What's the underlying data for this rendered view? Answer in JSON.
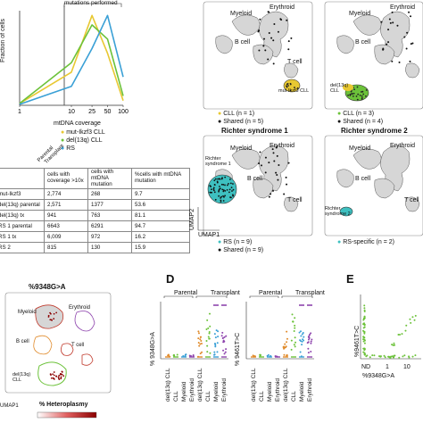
{
  "colors": {
    "cll_yellow": "#e8c832",
    "del13q_green": "#6cc23a",
    "rs_blue": "#3aa0d6",
    "rs_teal": "#3ec0c0",
    "shared_black": "#111111",
    "cell_gray": "#d6d6d6",
    "parental_orange": "#e08a2a",
    "myeloid_red": "#c0392b",
    "erythroid_purple": "#8e44ad"
  },
  "panel_a": {
    "annotation": "mutations performed",
    "ylabel": "Fraction of cells",
    "xlabel": "mtDNA coverage",
    "xticks": [
      "1",
      "10",
      "25",
      "50",
      "100"
    ],
    "legend": [
      "mut-Ikzf3 CLL",
      "del(13q) CLL",
      "RS"
    ],
    "side_label_1": "Parental",
    "side_label_2": "Transplant"
  },
  "table": {
    "headers": [
      "",
      "cells with coverage >10x",
      "cells with mtDNA mutation",
      "%cells with mtDNA mutation"
    ],
    "rows": [
      [
        "mut-Ikzf3",
        "2,774",
        "268",
        "9.7"
      ],
      [
        "del(13q) parental",
        "2,571",
        "1377",
        "53.6"
      ],
      [
        "del(13q) tx",
        "941",
        "763",
        "81.1"
      ],
      [
        "RS 1 parental",
        "6643",
        "6291",
        "94.7"
      ],
      [
        "RS 1 tx",
        "6,009",
        "972",
        "16.2"
      ],
      [
        "RS 2",
        "815",
        "130",
        "15.9"
      ]
    ]
  },
  "umaps": {
    "myeloid": "Myeloid",
    "erythroid": "Erythroid",
    "bcell": "B cell",
    "tcell": "T cell",
    "umap1": "UMAP1",
    "umap2": "UMAP2",
    "p1": {
      "label": "mut-Ikzf3 CLL",
      "leg1": "CLL (n = 1)",
      "leg2": "Shared (n = 5)"
    },
    "p2": {
      "label": "del(13q) CLL",
      "leg1": "CLL (n = 3)",
      "leg2": "Shared (n = 4)"
    },
    "p3": {
      "title": "Richter syndrome 1",
      "label": "Richter syndrome 1",
      "leg1": "RS (n = 9)",
      "leg2": "Shared (n = 9)"
    },
    "p4": {
      "title": "Richter syndrome 2",
      "label": "Richter syndrome 2",
      "leg1": "RS-specific (n = 2)"
    }
  },
  "panel_c": {
    "title": "%9348G>A",
    "myeloid": "Myeloid",
    "erythroid": "Erythroid",
    "bcell": "B cell",
    "tcell": "T cell",
    "cll": "del(13q) CLL",
    "umap1": "UMAP1",
    "colorbar_label": "% Heteroplasmy"
  },
  "panel_d": {
    "letter": "D",
    "parental": "Parental",
    "transplant": "Transplant",
    "ylabel1": "% 9348G>A",
    "ylabel2": "% 9461T>C",
    "categories": [
      "del(13q) CLL",
      "CLL",
      "Myeloid",
      "Erythroid"
    ]
  },
  "panel_e": {
    "letter": "E",
    "ylabel": "%9461T>C",
    "xlabel": "%9348G>A",
    "xticks": [
      "ND",
      "1",
      "10"
    ]
  },
  "chart_data": [
    {
      "type": "line",
      "xlabel": "mtDNA coverage",
      "ylabel": "Fraction of cells",
      "x": [
        1,
        10,
        25,
        50,
        100
      ],
      "series": [
        {
          "name": "mut-Ikzf3 CLL",
          "values": [
            0.02,
            0.35,
            0.95,
            0.55,
            0.05
          ]
        },
        {
          "name": "del(13q) CLL",
          "values": [
            0.02,
            0.45,
            0.85,
            0.7,
            0.1
          ]
        },
        {
          "name": "RS",
          "values": [
            0.01,
            0.2,
            0.6,
            0.95,
            0.3
          ]
        }
      ]
    },
    {
      "type": "scatter",
      "ylabel": "% 9348G>A",
      "categories": [
        "del(13q) CLL",
        "CLL",
        "Myeloid",
        "Erythroid"
      ],
      "series": [
        {
          "name": "Parental"
        },
        {
          "name": "Transplant"
        }
      ]
    },
    {
      "type": "scatter",
      "ylabel": "% 9461T>C",
      "categories": [
        "del(13q) CLL",
        "CLL",
        "Myeloid",
        "Erythroid"
      ],
      "series": [
        {
          "name": "Parental"
        },
        {
          "name": "Transplant"
        }
      ]
    },
    {
      "type": "scatter",
      "xlabel": "%9348G>A",
      "ylabel": "%9461T>C",
      "xticks": [
        "ND",
        "1",
        "10"
      ]
    }
  ]
}
